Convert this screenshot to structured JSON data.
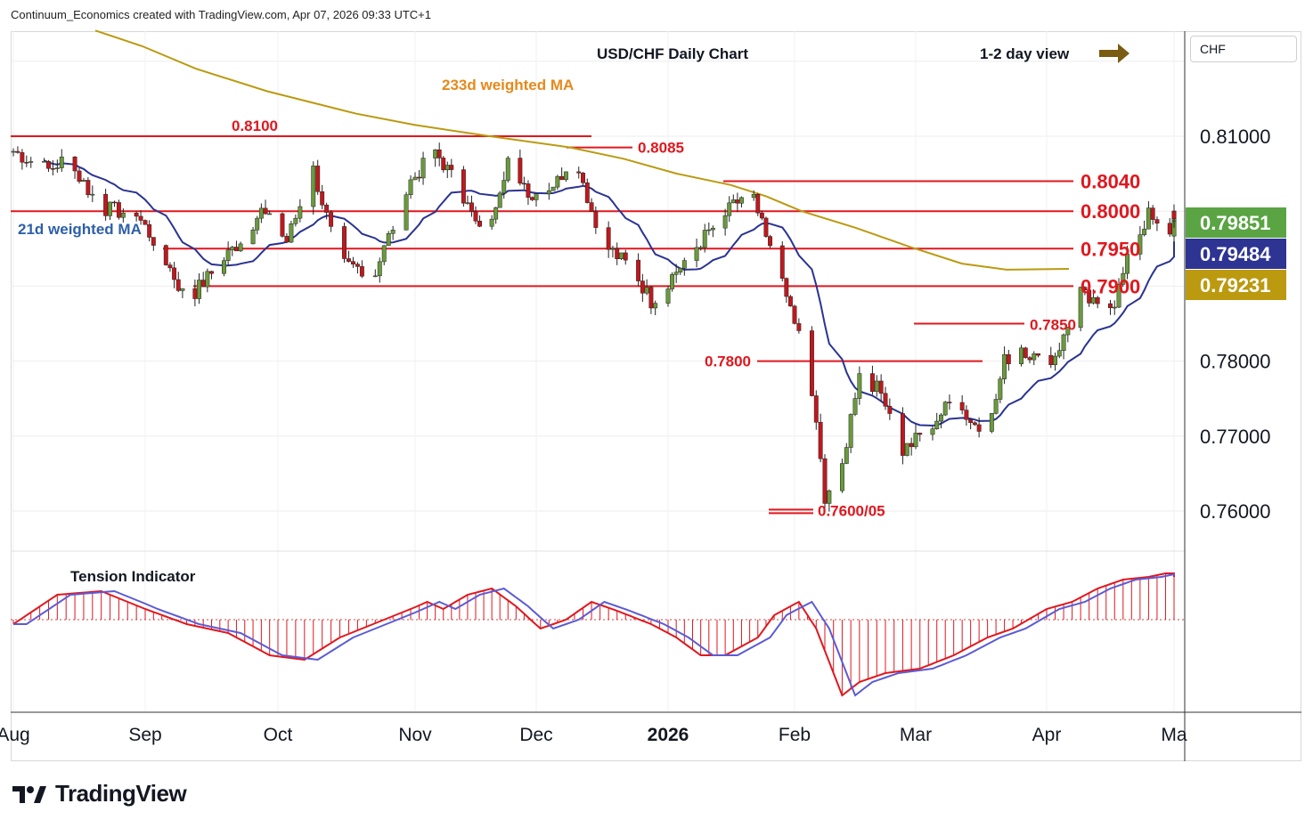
{
  "header": {
    "credit": "Continuum_Economics created with TradingView.com, Apr 07, 2026 09:33 UTC+1"
  },
  "currency": "CHF",
  "brand": {
    "name": "TradingView"
  },
  "colors": {
    "candle_up": "#6a9a3c",
    "candle_down": "#c0181d",
    "level_line": "#e0171e",
    "ma21": "#2a3392",
    "ma233": "#bb9a10",
    "tension_up": "#e0171e",
    "tension_line": "#5b5bd6",
    "arrow": "#7a5c12",
    "last_price_bg": "#5aa444",
    "ma21_bg": "#2e3492",
    "ma233_bg": "#bb9a10"
  },
  "chart_data": {
    "type": "candlestick",
    "title": "USD/CHF Daily Chart",
    "view_note": "1-2 day view",
    "y_axis": {
      "currency": "CHF",
      "ticks": [
        "0.81000",
        "0.78000",
        "0.77000",
        "0.76000"
      ],
      "range": [
        0.7555,
        0.8175
      ]
    },
    "x_axis": {
      "labels": [
        "Aug",
        "Sep",
        "Oct",
        "Nov",
        "Dec",
        "2026",
        "Feb",
        "Mar",
        "Apr",
        "Ma"
      ]
    },
    "price_tags": [
      {
        "value": "0.79851",
        "role": "last-price"
      },
      {
        "value": "0.79484",
        "role": "21d-weighted-ma"
      },
      {
        "value": "0.79231",
        "role": "233d-weighted-ma"
      }
    ],
    "levels": [
      {
        "label": "0.8100",
        "value": 0.81,
        "x_from": "Aug",
        "x_to": "mid-Dec"
      },
      {
        "label": "0.8085",
        "value": 0.8085,
        "x_from": "early Dec",
        "x_to": "mid-Dec"
      },
      {
        "label": "0.8040",
        "value": 0.804,
        "x_from": "mid-Jan",
        "x_to": "Apr"
      },
      {
        "label": "0.8000",
        "value": 0.8,
        "x_from": "Aug",
        "x_to": "Apr"
      },
      {
        "label": "0.7950",
        "value": 0.795,
        "x_from": "Sep",
        "x_to": "Apr"
      },
      {
        "label": "0.7900",
        "value": 0.79,
        "x_from": "Sep",
        "x_to": "Apr"
      },
      {
        "label": "0.7850",
        "value": 0.785,
        "x_from": "Mar",
        "x_to": "late Mar"
      },
      {
        "label": "0.7800",
        "value": 0.78,
        "x_from": "late Jan",
        "x_to": "late Mar"
      },
      {
        "label": "0.7600/05",
        "value": 0.7602,
        "x_from": "late Jan",
        "x_to": "early Feb"
      }
    ],
    "series": [
      {
        "name": "21d weighted MA"
      },
      {
        "name": "233d weighted MA"
      }
    ],
    "indicator": {
      "name": "Tension Indicator"
    },
    "grid": true
  }
}
